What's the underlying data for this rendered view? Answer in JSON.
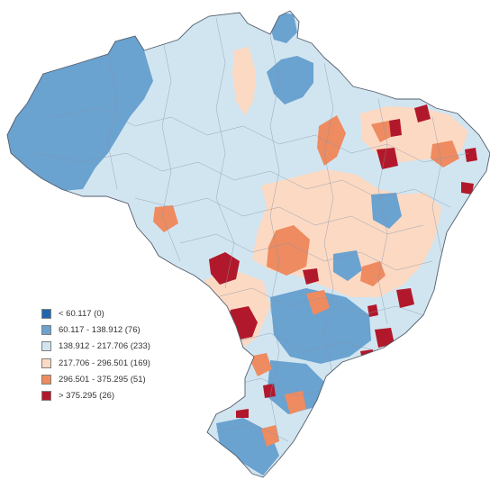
{
  "map": {
    "country": "Brazil",
    "map_type": "choropleth",
    "colors": {
      "class_1": "#2166ac",
      "class_2": "#6aa2d0",
      "class_3": "#d1e5f0",
      "class_4": "#fcd9c3",
      "class_5": "#ee8b60",
      "class_6": "#b2182b",
      "border": "#7a8aa0",
      "outline": "#545d6b"
    },
    "legend": {
      "items": [
        {
          "label": "< 60.117 (0)",
          "color": "#2166ac"
        },
        {
          "label": "60.117 - 138.912 (76)",
          "color": "#6aa2d0"
        },
        {
          "label": "138.912 - 217.706 (233)",
          "color": "#d1e5f0"
        },
        {
          "label": "217.706 - 296.501 (169)",
          "color": "#fcd9c3"
        },
        {
          "label": "296.501 - 375.295 (51)",
          "color": "#ee8b60"
        },
        {
          "label": "> 375.295 (26)",
          "color": "#b2182b"
        }
      ]
    }
  }
}
